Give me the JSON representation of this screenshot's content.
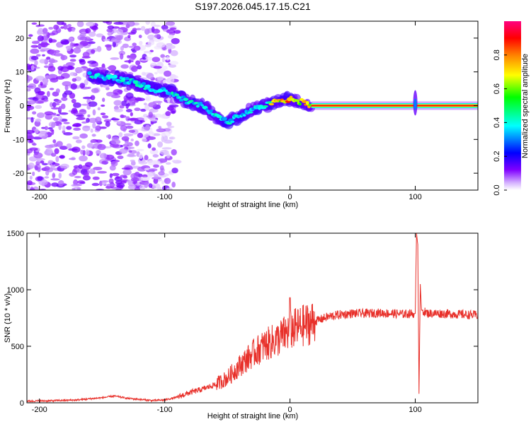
{
  "figure": {
    "title": "S197.2026.045.17.15.C21"
  },
  "chart_data": [
    {
      "type": "heatmap",
      "title": "",
      "xlabel": "Height of straight line (km)",
      "ylabel": "Frequency (Hz)",
      "xlim": [
        -210,
        150
      ],
      "ylim": [
        -25,
        25
      ],
      "xticks": [
        -200,
        -100,
        0,
        100
      ],
      "yticks": [
        20,
        10,
        0,
        -10,
        -20
      ],
      "colorbar": {
        "label": "Normalized spectral amplitude",
        "range": [
          0,
          1
        ],
        "ticks": [
          0.0,
          0.2,
          0.4,
          0.6,
          0.8
        ],
        "colors": [
          "#ffffff",
          "#8000ff",
          "#0000ff",
          "#00ffff",
          "#00ff00",
          "#ffff00",
          "#ff8000",
          "#ff0000",
          "#ff0080"
        ]
      },
      "features": {
        "noise_region_x": [
          -210,
          -100
        ],
        "bright_band_x": [
          17,
          150
        ],
        "bright_band_frequency": 0,
        "spike_x": 100,
        "track": {
          "x": [
            -160,
            -140,
            -125,
            -110,
            -95,
            -80,
            -70,
            -60,
            -50,
            -40,
            -30,
            -20,
            -10,
            0,
            10,
            17
          ],
          "frequency": [
            9,
            8,
            7,
            5,
            4,
            1,
            0,
            -3,
            -5,
            -3,
            -1,
            0,
            1,
            2,
            1,
            0
          ]
        }
      }
    },
    {
      "type": "line",
      "title": "",
      "xlabel": "Height of straight line (km)",
      "ylabel": "SNR (10 * v/v)",
      "xlim": [
        -210,
        150
      ],
      "ylim": [
        0,
        1500
      ],
      "xticks": [
        -200,
        -100,
        0,
        100
      ],
      "yticks": [
        0,
        500,
        1000,
        1500
      ],
      "series": [
        {
          "name": "SNR",
          "color": "#e8302a",
          "x": [
            -210,
            -190,
            -170,
            -150,
            -140,
            -130,
            -110,
            -100,
            -90,
            -80,
            -70,
            -60,
            -50,
            -40,
            -30,
            -20,
            -10,
            0,
            10,
            20,
            30,
            40,
            50,
            60,
            70,
            80,
            90,
            100,
            101,
            102,
            103,
            104,
            105,
            110,
            120,
            130,
            140,
            150
          ],
          "y": [
            15,
            18,
            25,
            45,
            60,
            40,
            20,
            25,
            50,
            90,
            120,
            160,
            220,
            330,
            430,
            510,
            560,
            640,
            680,
            720,
            760,
            780,
            790,
            790,
            795,
            790,
            785,
            790,
            1500,
            1400,
            80,
            1050,
            820,
            790,
            790,
            785,
            780,
            775
          ]
        }
      ],
      "annotations": {
        "spike_x": 0,
        "spike_y": 930
      }
    }
  ]
}
